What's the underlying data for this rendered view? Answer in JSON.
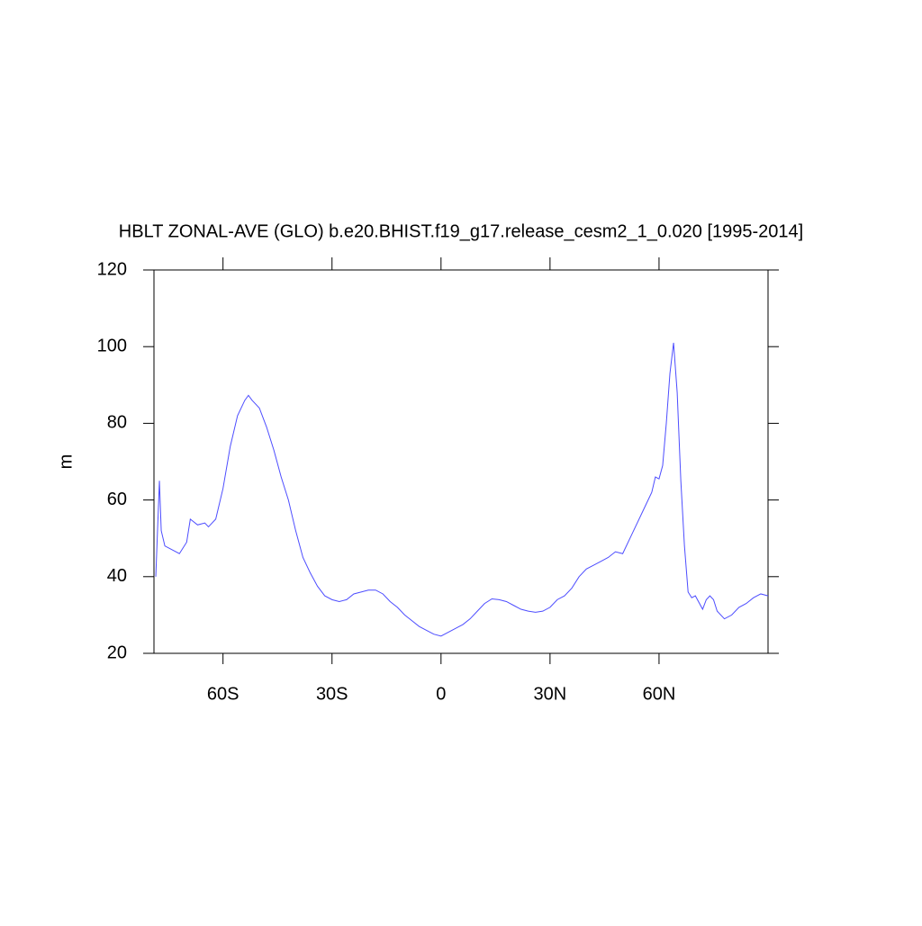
{
  "chart_data": {
    "type": "line",
    "title": "HBLT ZONAL-AVE (GLO) b.e20.BHIST.f19_g17.release_cesm2_1_0.020 [1995-2014]",
    "y_label": "m",
    "x": [
      -78.5,
      -77.5,
      -77,
      -76,
      -74,
      -72,
      -70,
      -69,
      -67,
      -65,
      -64,
      -62,
      -60,
      -58,
      -56,
      -54,
      -53,
      -52,
      -50,
      -48,
      -46,
      -44,
      -42,
      -40,
      -38,
      -36,
      -34,
      -32,
      -30,
      -28,
      -26,
      -24,
      -22,
      -20,
      -18,
      -16,
      -14,
      -12,
      -10,
      -8,
      -6,
      -4,
      -2,
      0,
      2,
      4,
      6,
      8,
      10,
      12,
      14,
      16,
      18,
      20,
      22,
      24,
      26,
      28,
      30,
      32,
      34,
      36,
      38,
      40,
      42,
      44,
      46,
      48,
      50,
      52,
      54,
      56,
      58,
      59,
      60,
      61,
      62,
      63,
      64,
      65,
      66,
      67,
      68,
      69,
      70,
      72,
      73,
      74,
      75,
      76,
      78,
      80,
      82,
      84,
      86,
      88,
      90
    ],
    "series": [
      {
        "name": "HBLT",
        "color": "#4d4dff",
        "values": [
          40,
          65,
          52,
          48,
          47,
          46,
          49,
          55,
          53.5,
          54,
          53,
          55,
          63,
          74,
          82,
          86,
          87.3,
          86,
          84,
          79,
          73,
          66,
          60,
          52,
          45,
          41,
          37.5,
          35,
          34,
          33.5,
          34,
          35.5,
          36,
          36.5,
          36.5,
          35.5,
          33.5,
          32,
          30,
          28.5,
          27,
          26,
          25,
          24.5,
          25.5,
          26.5,
          27.5,
          29,
          31,
          33,
          34.2,
          34,
          33.5,
          32.5,
          31.5,
          31,
          30.7,
          31,
          32,
          34,
          35,
          37,
          40,
          42,
          43,
          44,
          45,
          46.5,
          46,
          50,
          54,
          58,
          62,
          66,
          65.5,
          69,
          80,
          93,
          101,
          88,
          65,
          48,
          36,
          34.5,
          35,
          31.5,
          34,
          35,
          34,
          31,
          29,
          30,
          32,
          33,
          34.5,
          35.5,
          35
        ]
      }
    ],
    "xlim": [
      -79,
      90
    ],
    "ylim": [
      20,
      120
    ],
    "xticks": [
      {
        "value": -60,
        "label": "60S"
      },
      {
        "value": -30,
        "label": "30S"
      },
      0,
      {
        "value": 30,
        "label": "30N"
      },
      {
        "value": 60,
        "label": "60N"
      }
    ],
    "yticks": [
      20,
      40,
      60,
      80,
      100,
      120
    ]
  }
}
